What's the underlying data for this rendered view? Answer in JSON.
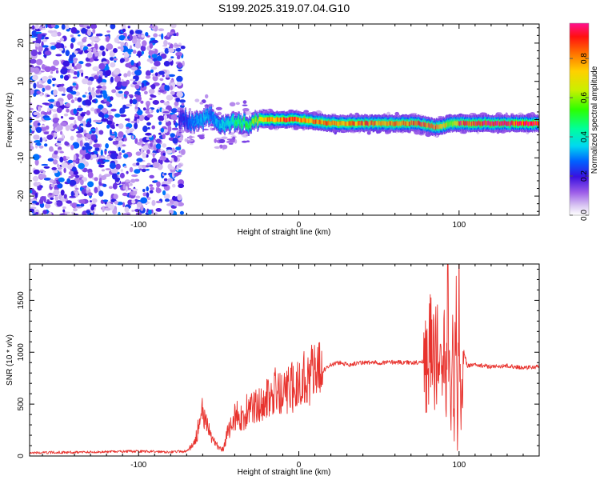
{
  "title": "S199.2025.319.07.04.G10",
  "chart_data": [
    {
      "type": "heatmap",
      "name": "spectrogram",
      "xlabel": "Height of straight line (km)",
      "ylabel": "Frequency (Hz)",
      "xlim": [
        -168,
        150
      ],
      "ylim": [
        -25,
        25
      ],
      "xticks": [
        "-100",
        "0",
        "100"
      ],
      "xtick_values": [
        -100,
        0,
        100
      ],
      "yticks": [
        "20",
        "10",
        "0",
        "-10",
        "-20"
      ],
      "ytick_values": [
        20,
        10,
        0,
        -10,
        -20
      ],
      "colorbar": {
        "label": "Normalized spectral amplitude",
        "range": [
          0,
          0.98
        ],
        "ticks": [
          "0.0",
          "0.2",
          "0.4",
          "0.6",
          "0.8"
        ],
        "tick_values": [
          0.0,
          0.2,
          0.4,
          0.6,
          0.8
        ]
      },
      "signal_track": {
        "x": [
          -75,
          -70,
          -65,
          -60,
          -55,
          -50,
          -45,
          -40,
          -35,
          -30,
          -25,
          -20,
          -15,
          -10,
          0,
          20,
          40,
          60,
          75,
          85,
          95,
          100,
          120,
          150
        ],
        "freq": [
          0,
          0,
          -1,
          0,
          1,
          -2,
          -1,
          -1,
          -1,
          -1,
          0,
          0,
          0,
          0,
          0,
          -1,
          -1,
          -1,
          -1,
          -2,
          -1,
          -1,
          -1,
          -1
        ],
        "amplitude": [
          0.2,
          0.25,
          0.3,
          0.35,
          0.3,
          0.35,
          0.35,
          0.45,
          0.5,
          0.55,
          0.7,
          0.8,
          0.8,
          0.85,
          0.85,
          0.8,
          0.85,
          0.8,
          0.85,
          0.9,
          0.6,
          0.9,
          0.95,
          0.95
        ]
      },
      "noise_region_x": [
        -168,
        -72
      ]
    },
    {
      "type": "line",
      "name": "snr",
      "xlabel": "Height of straight line (km)",
      "ylabel": "SNR (10 * v/v)",
      "xlim": [
        -168,
        150
      ],
      "ylim": [
        0,
        1850
      ],
      "xticks": [
        "-100",
        "0",
        "100"
      ],
      "xtick_values": [
        -100,
        0,
        100
      ],
      "yticks": [
        "0",
        "500",
        "1000",
        "1500"
      ],
      "ytick_values": [
        0,
        500,
        1000,
        1500
      ],
      "color": "#e8322d",
      "x": [
        -168,
        -150,
        -120,
        -100,
        -80,
        -70,
        -65,
        -62,
        -60,
        -58,
        -55,
        -50,
        -47,
        -45,
        -42,
        -40,
        -38,
        -35,
        -32,
        -30,
        -28,
        -25,
        -22,
        -20,
        -17,
        -15,
        -10,
        -5,
        0,
        5,
        10,
        15,
        20,
        25,
        30,
        40,
        50,
        60,
        70,
        75,
        80,
        82,
        85,
        87,
        88,
        90,
        92,
        93,
        95,
        96,
        97,
        98,
        99,
        100,
        101,
        103,
        105,
        110,
        120,
        130,
        140,
        150
      ],
      "y": [
        30,
        35,
        40,
        45,
        40,
        45,
        120,
        320,
        420,
        300,
        200,
        80,
        60,
        200,
        300,
        380,
        400,
        350,
        450,
        420,
        500,
        480,
        550,
        600,
        500,
        620,
        580,
        650,
        700,
        780,
        800,
        820,
        880,
        900,
        880,
        900,
        900,
        905,
        900,
        900,
        920,
        1050,
        850,
        1200,
        700,
        1300,
        600,
        1450,
        300,
        1500,
        100,
        1800,
        50,
        1700,
        400,
        1000,
        870,
        880,
        860,
        870,
        850,
        860
      ]
    }
  ]
}
